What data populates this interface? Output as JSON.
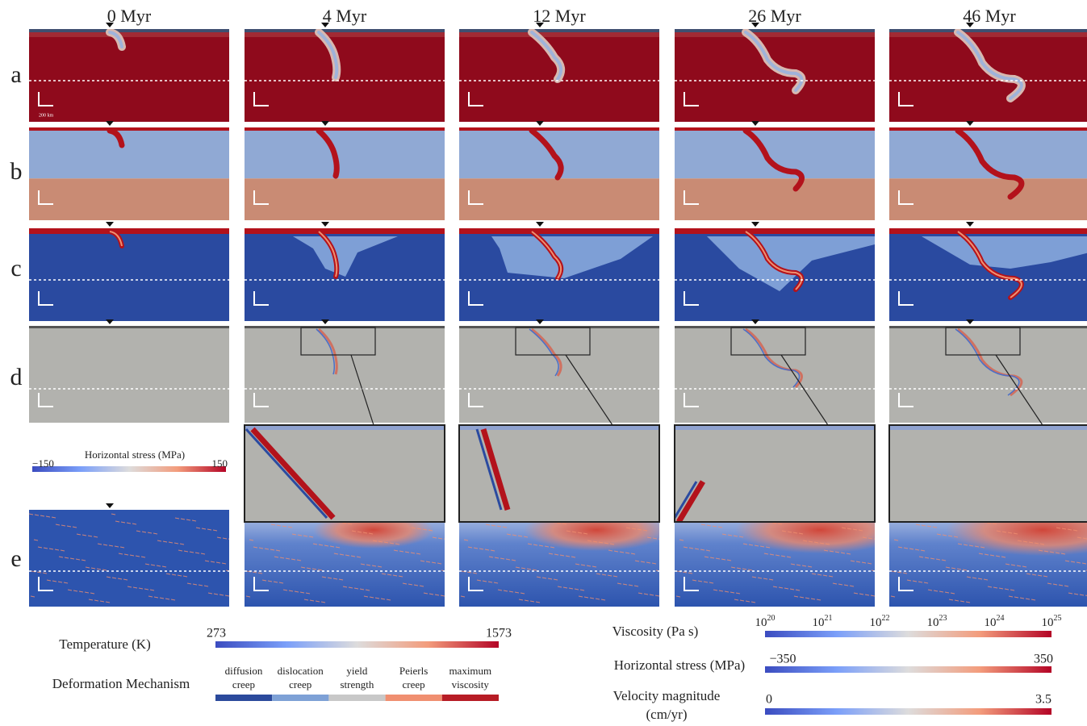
{
  "columns": [
    "0 Myr",
    "4 Myr",
    "12 Myr",
    "26 Myr",
    "46 Myr"
  ],
  "rows": [
    "a",
    "b",
    "c",
    "d",
    "e"
  ],
  "scale_bar": "200 km",
  "inset_colorbar": {
    "title": "Horizontal stress (MPa)",
    "min": "−150",
    "max": "150"
  },
  "legends": {
    "temperature": {
      "title": "Temperature (K)",
      "min": "273",
      "max": "1573"
    },
    "deformation": {
      "title": "Deformation Mechanism",
      "classes": [
        {
          "lines": [
            "diffusion",
            "creep"
          ]
        },
        {
          "lines": [
            "dislocation",
            "creep"
          ]
        },
        {
          "lines": [
            "yield",
            "strength"
          ]
        },
        {
          "lines": [
            "Peierls",
            "creep"
          ]
        },
        {
          "lines": [
            "maximum",
            "viscosity"
          ]
        }
      ]
    },
    "viscosity": {
      "title": "Viscosity (Pa s)",
      "ticks": [
        {
          "base": "10",
          "exp": "20"
        },
        {
          "base": "10",
          "exp": "21"
        },
        {
          "base": "10",
          "exp": "22"
        },
        {
          "base": "10",
          "exp": "23"
        },
        {
          "base": "10",
          "exp": "24"
        },
        {
          "base": "10",
          "exp": "25"
        }
      ]
    },
    "stress": {
      "title": "Horizontal stress (MPa)",
      "min": "−350",
      "max": "350"
    },
    "velocity": {
      "title_lines": [
        "Velocity magnitude",
        "(cm/yr)"
      ],
      "min": "0",
      "max": "3.5"
    }
  }
}
